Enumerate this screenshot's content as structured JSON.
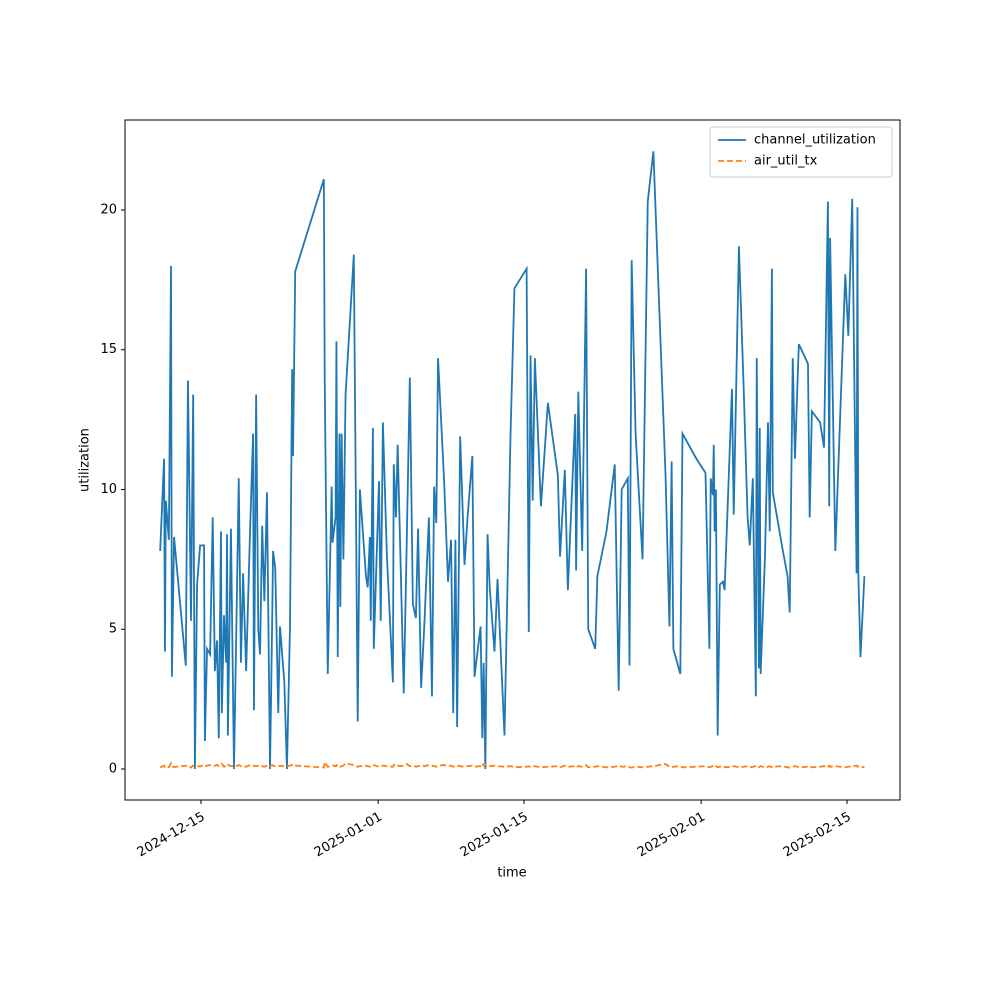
{
  "chart_data": {
    "type": "line",
    "xlabel": "time",
    "ylabel": "utilization",
    "x": [
      "2024-12-11 02:00",
      "2024-12-11 11:00",
      "2024-12-11 13:00",
      "2024-12-11 15:00",
      "2024-12-11 22:00",
      "2024-12-12 03:00",
      "2024-12-12 05:00",
      "2024-12-12 10:00",
      "2024-12-13 13:00",
      "2024-12-13 18:00",
      "2024-12-13 21:00",
      "2024-12-14 01:00",
      "2024-12-14 06:00",
      "2024-12-14 10:00",
      "2024-12-14 15:00",
      "2024-12-14 22:00",
      "2024-12-15 07:00",
      "2024-12-15 09:00",
      "2024-12-15 14:00",
      "2024-12-15 21:00",
      "2024-12-16 03:00",
      "2024-12-16 08:00",
      "2024-12-16 13:00",
      "2024-12-16 17:00",
      "2024-12-16 22:00",
      "2024-12-17 00:00",
      "2024-12-17 05:00",
      "2024-12-17 10:00",
      "2024-12-17 12:00",
      "2024-12-17 14:00",
      "2024-12-17 21:00",
      "2024-12-18 04:00",
      "2024-12-18 09:00",
      "2024-12-18 15:00",
      "2024-12-18 20:00",
      "2024-12-19 01:00",
      "2024-12-19 08:00",
      "2024-12-19 17:00",
      "2024-12-20 00:00",
      "2024-12-20 02:00",
      "2024-12-20 07:00",
      "2024-12-20 12:00",
      "2024-12-20 16:00",
      "2024-12-20 21:00",
      "2024-12-21 02:00",
      "2024-12-21 08:00",
      "2024-12-21 15:00",
      "2024-12-21 20:00",
      "2024-12-21 22:00",
      "2024-12-22 03:00",
      "2024-12-22 10:00",
      "2024-12-22 14:00",
      "2024-12-22 19:00",
      "2024-12-23 00:00",
      "2024-12-23 06:00",
      "2024-12-23 13:00",
      "2024-12-23 18:00",
      "2024-12-23 20:00",
      "2024-12-24 01:00",
      "2024-12-26 19:00",
      "2024-12-26 21:00",
      "2024-12-27 04:00",
      "2024-12-27 13:00",
      "2024-12-27 15:00",
      "2024-12-27 22:00",
      "2024-12-28 00:00",
      "2024-12-28 03:00",
      "2024-12-28 07:00",
      "2024-12-28 09:00",
      "2024-12-28 12:00",
      "2024-12-28 16:00",
      "2024-12-28 21:00",
      "2024-12-29 16:00",
      "2024-12-30 01:00",
      "2024-12-30 06:00",
      "2024-12-30 20:00",
      "2024-12-31 00:00",
      "2024-12-31 05:00",
      "2024-12-31 07:00",
      "2024-12-31 12:00",
      "2024-12-31 14:00",
      "2024-12-31 21:00",
      "2025-01-01 02:00",
      "2025-01-01 06:00",
      "2025-01-01 11:00",
      "2025-01-01 20:00",
      "2025-01-02 10:00",
      "2025-01-02 12:00",
      "2025-01-02 17:00",
      "2025-01-02 21:00",
      "2025-01-03 04:00",
      "2025-01-03 11:00",
      "2025-01-03 18:00",
      "2025-01-04 01:00",
      "2025-01-04 08:00",
      "2025-01-04 15:00",
      "2025-01-04 20:00",
      "2025-01-05 03:00",
      "2025-01-05 10:00",
      "2025-01-05 21:00",
      "2025-01-06 04:00",
      "2025-01-06 09:00",
      "2025-01-06 14:00",
      "2025-01-06 18:00",
      "2025-01-07 08:00",
      "2025-01-07 17:00",
      "2025-01-08 00:00",
      "2025-01-08 05:00",
      "2025-01-08 10:00",
      "2025-01-08 14:00",
      "2025-01-08 21:00",
      "2025-01-09 07:00",
      "2025-01-09 14:00",
      "2025-01-10 01:00",
      "2025-01-10 06:00",
      "2025-01-10 20:00",
      "2025-01-11 00:00",
      "2025-01-11 03:00",
      "2025-01-11 07:00",
      "2025-01-11 12:00",
      "2025-01-11 17:00",
      "2025-01-12 04:00",
      "2025-01-12 11:00",
      "2025-01-13 03:00",
      "2025-01-13 17:00",
      "2025-01-14 02:00",
      "2025-01-15 06:00",
      "2025-01-15 11:00",
      "2025-01-15 15:00",
      "2025-01-15 20:00",
      "2025-01-16 01:00",
      "2025-01-16 15:00",
      "2025-01-17 07:00",
      "2025-01-18 06:00",
      "2025-01-18 11:00",
      "2025-01-18 22:00",
      "2025-01-19 05:00",
      "2025-01-19 22:00",
      "2025-01-20 00:00",
      "2025-01-20 05:00",
      "2025-01-20 14:00",
      "2025-01-20 23:00",
      "2025-01-21 04:00",
      "2025-01-21 20:00",
      "2025-01-22 01:00",
      "2025-01-22 22:00",
      "2025-01-23 17:00",
      "2025-01-24 02:00",
      "2025-01-24 09:00",
      "2025-01-24 23:00",
      "2025-01-25 03:00",
      "2025-01-25 08:00",
      "2025-01-25 17:00",
      "2025-01-26 09:00",
      "2025-01-26 21:00",
      "2025-01-27 10:00",
      "2025-01-28 14:00",
      "2025-01-28 23:00",
      "2025-01-29 04:00",
      "2025-01-29 08:00",
      "2025-01-30 00:00",
      "2025-01-30 05:00",
      "2025-01-31 13:00",
      "2025-02-01 10:00",
      "2025-02-01 19:00",
      "2025-02-01 22:00",
      "2025-02-02 03:00",
      "2025-02-02 05:00",
      "2025-02-02 07:00",
      "2025-02-02 10:00",
      "2025-02-02 14:00",
      "2025-02-02 19:00",
      "2025-02-03 02:00",
      "2025-02-03 06:00",
      "2025-02-03 23:00",
      "2025-02-04 03:00",
      "2025-02-04 15:00",
      "2025-02-05 02:00",
      "2025-02-05 11:00",
      "2025-02-05 16:00",
      "2025-02-05 23:00",
      "2025-02-06 06:00",
      "2025-02-06 08:00",
      "2025-02-06 13:00",
      "2025-02-06 15:00",
      "2025-02-06 17:00",
      "2025-02-07 03:00",
      "2025-02-07 10:00",
      "2025-02-07 14:00",
      "2025-02-07 19:00",
      "2025-02-07 21:00",
      "2025-02-08 18:00",
      "2025-02-09 07:00",
      "2025-02-09 12:00",
      "2025-02-09 19:00",
      "2025-02-10 00:00",
      "2025-02-10 09:00",
      "2025-02-11 06:00",
      "2025-02-11 10:00",
      "2025-02-11 15:00",
      "2025-02-12 10:00",
      "2025-02-12 19:00",
      "2025-02-13 04:00",
      "2025-02-13 07:00",
      "2025-02-13 09:00",
      "2025-02-13 21:00",
      "2025-02-14 20:00",
      "2025-02-15 03:00",
      "2025-02-15 12:00",
      "2025-02-15 22:00",
      "2025-02-16 00:00",
      "2025-02-16 02:00",
      "2025-02-16 07:00",
      "2025-02-16 16:00"
    ],
    "series": [
      {
        "name": "channel_utilization",
        "color": "#1f77b4",
        "dash": false,
        "values": [
          7.8,
          11.1,
          4.2,
          9.6,
          8.2,
          18.0,
          3.3,
          8.3,
          3.7,
          13.9,
          10.3,
          5.3,
          13.4,
          0.0,
          6.6,
          8.0,
          8.0,
          1.0,
          4.3,
          4.1,
          9.0,
          3.5,
          4.6,
          1.1,
          8.5,
          2.0,
          5.5,
          3.8,
          8.4,
          1.2,
          8.6,
          0.0,
          4.6,
          10.4,
          3.8,
          7.0,
          3.5,
          8.5,
          12.0,
          2.1,
          13.4,
          5.0,
          4.1,
          8.7,
          6.0,
          9.9,
          0.0,
          5.3,
          7.8,
          7.2,
          2.0,
          5.1,
          4.1,
          3.1,
          0.0,
          5.1,
          14.3,
          11.2,
          17.8,
          21.1,
          13.9,
          3.4,
          10.1,
          8.1,
          9.0,
          15.3,
          4.0,
          12.0,
          5.8,
          12.0,
          7.5,
          13.4,
          18.4,
          1.7,
          10.0,
          6.9,
          6.5,
          8.3,
          5.3,
          12.2,
          4.3,
          7.8,
          10.3,
          5.3,
          12.4,
          7.7,
          3.1,
          10.9,
          9.0,
          11.6,
          7.2,
          2.7,
          8.2,
          14.0,
          5.9,
          5.4,
          8.6,
          2.9,
          5.0,
          9.0,
          2.6,
          10.1,
          8.8,
          14.7,
          10.3,
          6.7,
          8.2,
          2.0,
          8.2,
          1.5,
          11.9,
          7.3,
          9.0,
          11.2,
          3.3,
          5.1,
          1.1,
          3.8,
          0.0,
          8.4,
          6.5,
          4.2,
          6.8,
          1.2,
          12.0,
          17.2,
          17.9,
          4.9,
          14.8,
          9.6,
          14.7,
          9.4,
          13.1,
          10.5,
          7.6,
          10.7,
          6.4,
          12.7,
          7.1,
          13.5,
          7.8,
          17.9,
          5.0,
          4.3,
          6.9,
          8.5,
          10.9,
          2.8,
          10.0,
          10.4,
          3.7,
          18.2,
          12.0,
          7.5,
          20.3,
          22.1,
          10.5,
          5.1,
          11.0,
          4.3,
          3.4,
          12.0,
          11.1,
          10.6,
          4.3,
          10.4,
          9.8,
          11.6,
          8.5,
          10.0,
          1.2,
          6.6,
          6.7,
          6.4,
          13.6,
          9.1,
          18.7,
          13.6,
          9.0,
          8.0,
          10.4,
          2.6,
          14.7,
          3.6,
          12.2,
          3.4,
          7.6,
          12.4,
          8.5,
          17.9,
          9.9,
          8.0,
          6.9,
          5.6,
          14.7,
          11.1,
          15.2,
          14.5,
          9.0,
          12.8,
          12.4,
          11.5,
          20.3,
          9.4,
          19.0,
          7.8,
          17.7,
          15.5,
          20.4,
          7.0,
          20.1,
          7.0,
          4.0,
          6.9
        ]
      },
      {
        "name": "air_util_tx",
        "color": "#ff7f0e",
        "dash": true,
        "values": [
          0.05,
          0.12,
          0.08,
          0.1,
          0.06,
          0.2,
          0.1,
          0.07,
          0.12,
          0.08,
          0.1,
          0.05,
          0.12,
          0.08,
          0.1,
          0.09,
          0.15,
          0.1,
          0.12,
          0.14,
          0.1,
          0.12,
          0.15,
          0.1,
          0.14,
          0.18,
          0.08,
          0.12,
          0.1,
          0.15,
          0.1,
          0.12,
          0.1,
          0.14,
          0.1,
          0.12,
          0.08,
          0.13,
          0.1,
          0.12,
          0.1,
          0.12,
          0.14,
          0.1,
          0.08,
          0.12,
          0.1,
          0.14,
          0.12,
          0.1,
          0.12,
          0.1,
          0.12,
          0.08,
          0.1,
          0.12,
          0.14,
          0.1,
          0.12,
          0.05,
          0.25,
          0.08,
          0.1,
          0.12,
          0.1,
          0.14,
          0.1,
          0.12,
          0.08,
          0.1,
          0.12,
          0.2,
          0.14,
          0.08,
          0.1,
          0.12,
          0.1,
          0.08,
          0.12,
          0.1,
          0.14,
          0.1,
          0.08,
          0.1,
          0.12,
          0.1,
          0.08,
          0.15,
          0.1,
          0.12,
          0.1,
          0.12,
          0.18,
          0.1,
          0.12,
          0.08,
          0.1,
          0.12,
          0.1,
          0.14,
          0.12,
          0.1,
          0.08,
          0.12,
          0.14,
          0.1,
          0.12,
          0.08,
          0.1,
          0.12,
          0.1,
          0.08,
          0.1,
          0.12,
          0.08,
          0.1,
          0.2,
          0.12,
          0.15,
          0.08,
          0.1,
          0.12,
          0.1,
          0.08,
          0.1,
          0.06,
          0.08,
          0.1,
          0.06,
          0.08,
          0.1,
          0.06,
          0.08,
          0.1,
          0.06,
          0.12,
          0.08,
          0.1,
          0.06,
          0.1,
          0.08,
          0.14,
          0.06,
          0.08,
          0.1,
          0.06,
          0.08,
          0.12,
          0.08,
          0.1,
          0.06,
          0.05,
          0.08,
          0.06,
          0.08,
          0.1,
          0.18,
          0.08,
          0.06,
          0.08,
          0.1,
          0.06,
          0.08,
          0.1,
          0.06,
          0.08,
          0.1,
          0.06,
          0.08,
          0.1,
          0.06,
          0.08,
          0.1,
          0.06,
          0.08,
          0.1,
          0.06,
          0.08,
          0.1,
          0.06,
          0.08,
          0.1,
          0.12,
          0.06,
          0.08,
          0.1,
          0.06,
          0.08,
          0.1,
          0.06,
          0.08,
          0.1,
          0.06,
          0.05,
          0.08,
          0.1,
          0.06,
          0.08,
          0.1,
          0.06,
          0.08,
          0.1,
          0.06,
          0.12,
          0.08,
          0.1,
          0.06,
          0.08,
          0.1,
          0.12,
          0.08,
          0.1,
          0.08,
          0.06
        ]
      }
    ],
    "xlim": [
      "2024-12-07 17:00",
      "2025-02-20 02:00"
    ],
    "xticks": [
      "2024-12-15",
      "2025-01-01",
      "2025-01-15",
      "2025-02-01",
      "2025-02-15"
    ],
    "ylim": [
      -1.11,
      23.22
    ],
    "yticks": [
      0,
      5,
      10,
      15,
      20
    ],
    "grid": false,
    "legend": "upper right"
  }
}
